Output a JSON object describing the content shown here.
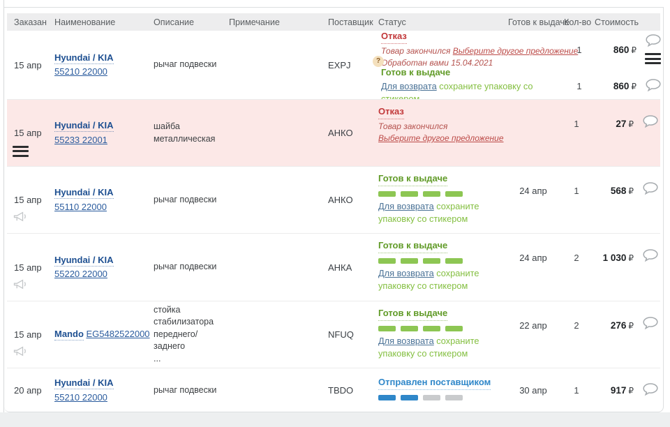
{
  "table": {
    "columns": [
      "Заказан",
      "Наименование",
      "Описание",
      "Примечание",
      "Поставщик",
      "Статус",
      "Готов к выдаче",
      "Кол-во",
      "Стоимость"
    ],
    "currency": "₽"
  },
  "statuses": {
    "refused": "Отказ",
    "ready": "Готов к выдаче",
    "sent": "Отправлен поставщиком",
    "out_of_stock": "Товар закончился",
    "choose_other": "Выберите другое предложение",
    "processed": "Обработан вами 15.04.2021",
    "return_link": "Для возврата",
    "return_text": "сохраните упаковку со стикером"
  },
  "colors": {
    "refused_red": "#c2383a",
    "ready_green": "#619b28",
    "bars_green": "#8dc653",
    "sent_blue": "#2f87c9",
    "row_alert_pink": "#fce8e7",
    "link_blue": "#1d4f91"
  },
  "rows": [
    {
      "date": "15 апр",
      "brand": "Hyundai / KIA",
      "part": "55210 22000",
      "desc": "рычаг подвески",
      "supplier": "EXPJ",
      "badge": "?",
      "subs": [
        {
          "qty": "1",
          "price": "860"
        },
        {
          "qty": "1",
          "price": "860"
        }
      ]
    },
    {
      "date": "15 апр",
      "brand": "Hyundai / KIA",
      "part": "55233 22001",
      "desc": "шайба металлическая",
      "supplier": "АНКО",
      "qty": "1",
      "price": "27"
    },
    {
      "date": "15 апр",
      "brand": "Hyundai / KIA",
      "part": "55110 22000",
      "desc": "рычаг подвески",
      "supplier": "АНКО",
      "ready": "24 апр",
      "qty": "1",
      "price": "568",
      "progress": {
        "filled": 4,
        "total": 4
      }
    },
    {
      "date": "15 апр",
      "brand": "Hyundai / KIA",
      "part": "55220 22000",
      "desc": "рычаг подвески",
      "supplier": "АНКА",
      "ready": "24 апр",
      "qty": "2",
      "price": "1 030",
      "progress": {
        "filled": 4,
        "total": 4
      }
    },
    {
      "date": "15 апр",
      "brand": "Mando",
      "part": "EG5482522000",
      "desc": "стойка стабилизатора переднего/заднего",
      "desc_more": "...",
      "supplier": "NFUQ",
      "ready": "22 апр",
      "qty": "2",
      "price": "276",
      "progress": {
        "filled": 4,
        "total": 4
      }
    },
    {
      "date": "20 апр",
      "brand": "Hyundai / KIA",
      "part": "55210 22000",
      "desc": "рычаг подвески",
      "supplier": "TBDO",
      "ready": "30 апр",
      "qty": "1",
      "price": "917",
      "progress": {
        "filled": 2,
        "total": 4
      }
    }
  ]
}
